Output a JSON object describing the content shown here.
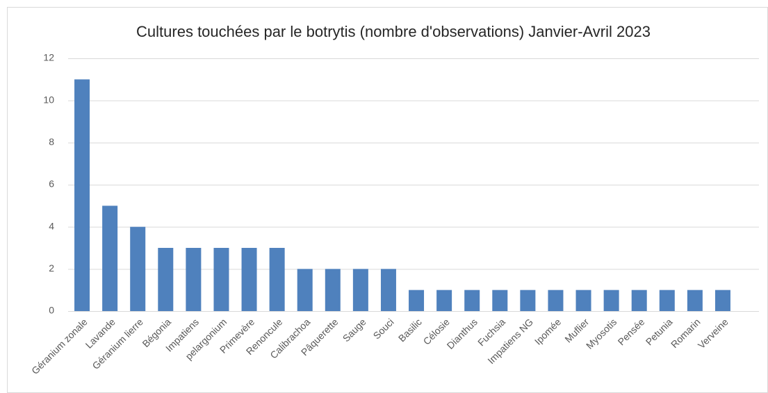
{
  "chart_data": {
    "type": "bar",
    "title": "Cultures touchées par le botrytis (nombre d'observations) Janvier-Avril 2023",
    "categories": [
      "Géranium zonale",
      "Lavande",
      "Géranium lierre",
      "Bégonia",
      "Impatiens",
      "pelargonium",
      "Primevère",
      "Renoncule",
      "Calibrachoa",
      "Pâquerette",
      "Sauge",
      "Souci",
      "Basilic",
      "Célosie",
      "Dianthus",
      "Fuchsia",
      "Impatiens NG",
      "Ipomée",
      "Muflier",
      "Myosotis",
      "Pensée",
      "Petunia",
      "Romarin",
      "Verveine"
    ],
    "values": [
      11,
      5,
      4,
      3,
      3,
      3,
      3,
      3,
      2,
      2,
      2,
      2,
      1,
      1,
      1,
      1,
      1,
      1,
      1,
      1,
      1,
      1,
      1,
      1
    ],
    "color": "#4f81bd",
    "ylim": [
      0,
      12
    ],
    "yticks": [
      0,
      2,
      4,
      6,
      8,
      10,
      12
    ],
    "grid": true
  }
}
